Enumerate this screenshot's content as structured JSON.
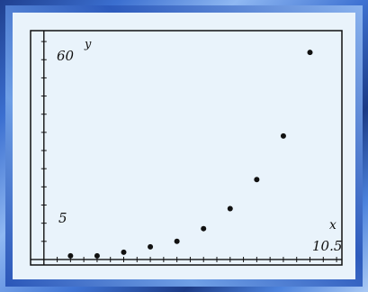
{
  "chart_data": {
    "type": "scatter",
    "title": "",
    "xlabel": "x",
    "ylabel": "y",
    "xlim": [
      -0.5,
      11.2
    ],
    "ylim": [
      -1.5,
      63
    ],
    "x_tick_marks_every": 0.5,
    "y_tick_marks_every": 5,
    "tick_labels": {
      "y_top": "60",
      "y_bottom": "5",
      "x_right": "10.5"
    },
    "grid": false,
    "points": [
      {
        "x": 1,
        "y": 1
      },
      {
        "x": 2,
        "y": 1
      },
      {
        "x": 3,
        "y": 2
      },
      {
        "x": 4,
        "y": 3.5
      },
      {
        "x": 5,
        "y": 5
      },
      {
        "x": 6,
        "y": 8.5
      },
      {
        "x": 7,
        "y": 14
      },
      {
        "x": 8,
        "y": 22
      },
      {
        "x": 9,
        "y": 34
      },
      {
        "x": 10,
        "y": 57
      }
    ],
    "colors": {
      "screen_background": "#e9f3fb",
      "axis": "#111111",
      "points": "#111111",
      "frame": "#2f5fc4"
    }
  }
}
